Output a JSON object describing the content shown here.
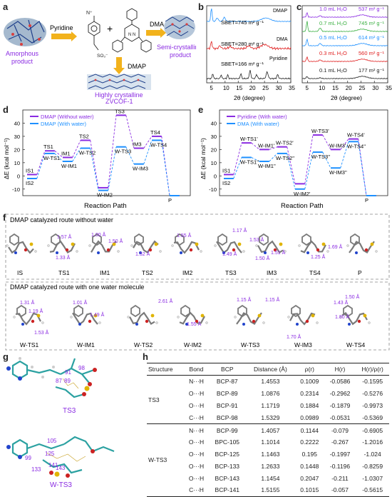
{
  "panels": [
    "a",
    "b",
    "c",
    "d",
    "e",
    "f",
    "g",
    "h"
  ],
  "panel_a": {
    "pyridine": "Pyridine",
    "dma": "DMA",
    "dmap": "DMAP",
    "plus": "+",
    "amorphous": "Amorphous\nproduct",
    "semicryst": "Semi-crystalline\nproduct",
    "highly": "Highly crystalline\nZVCOF-1"
  },
  "panel_b": {
    "xlabel": "2θ (degree)",
    "ticks": [
      "5",
      "10",
      "15",
      "20",
      "25",
      "30",
      "35"
    ],
    "labels": [
      "S$_{BET}$=745 m² g⁻¹",
      "S$_{BET}$=280 m² g⁻¹",
      "S$_{BET}$=166 m² g⁻¹"
    ],
    "sbet": [
      "SBET=745 m² g⁻¹",
      "SBET=280 m² g⁻¹",
      "SBET=166 m² g⁻¹"
    ],
    "reagents": [
      "DMAP",
      "DMA",
      "Pyridine"
    ]
  },
  "panel_c": {
    "xlabel": "2θ (degree)",
    "ticks": [
      "5",
      "10",
      "15",
      "20",
      "25",
      "30",
      "35"
    ],
    "curves": [
      {
        "label": "1.0 mL H₂O",
        "area": "537 m² g⁻¹",
        "color": "#8a2be2"
      },
      {
        "label": "0.7 mL H₂O",
        "area": "745 m² g⁻¹",
        "color": "#3cb043"
      },
      {
        "label": "0.5 mL H₂O",
        "area": "614 m² g⁻¹",
        "color": "#1e90ff"
      },
      {
        "label": "0.3 mL H₂O",
        "area": "560 m² g⁻¹",
        "color": "#e02020"
      },
      {
        "label": "0.1 mL H₂O",
        "area": "177 m² g⁻¹",
        "color": "#222222"
      }
    ]
  },
  "panel_d": {
    "ylabel": "ΔE (kcal mol⁻¹)",
    "xlabel": "Reaction Path",
    "yticks": [
      "40",
      "30",
      "20",
      "10",
      "0",
      "-10"
    ],
    "legend": [
      "DMAP (Without water)",
      "DMAP (With water)"
    ],
    "colors": [
      "#8a2be2",
      "#1e90ff"
    ],
    "states_top": [
      "IS1",
      "TS1",
      "IM1",
      "TS2",
      "IM2",
      "TS3",
      "IM3",
      "TS4",
      "P"
    ],
    "states_bot": [
      "IS2",
      "W-TS1",
      "W-IM1",
      "W-TS2",
      "W-IM2",
      "W-TS3",
      "W-IM3",
      "W-TS4"
    ]
  },
  "panel_e": {
    "ylabel": "ΔE (kcal mol⁻¹)",
    "xlabel": "Reaction Path",
    "yticks": [
      "40",
      "30",
      "20",
      "10",
      "0",
      "-10"
    ],
    "legend": [
      "Pyridine (With water)",
      "DMA (With water)"
    ],
    "colors": [
      "#8a2be2",
      "#1e90ff"
    ],
    "states": [
      "IS1",
      "IS2",
      "W-TS1'",
      "W-TS1''",
      "W-IM1'",
      "W-IM1''",
      "W-TS2'",
      "W-TS2''",
      "W-IM2'",
      "W-IM2''",
      "W-TS3'",
      "W-TS3''",
      "W-IM3'",
      "W-IM3''",
      "W-TS4'",
      "W-TS4''",
      "P"
    ]
  },
  "panel_f": {
    "title1": "DMAP catalyzed route without water",
    "title2": "DMAP catalyzed route with one water molecule",
    "row1": [
      "IS",
      "TS1",
      "IM1",
      "TS2",
      "IM2",
      "TS3",
      "IM3",
      "TS4",
      "P"
    ],
    "row2": [
      "W-TS1",
      "W-IM1",
      "W-TS2",
      "W-IM2",
      "W-TS3",
      "W-IM3",
      "W-TS4"
    ],
    "dist1": [
      "1.57 Å",
      "1.33 Å",
      "1.00 Å",
      "1.50 Å",
      "1.52 Å",
      "1.55 Å",
      "1.17 Å",
      "1.53 Å",
      "1.49 Å",
      "1.50 Å",
      "1.51 Å",
      "1.69 Å",
      "1.25 Å"
    ],
    "dist2": [
      "1.31 Å",
      "1.19 Å",
      "1.53 Å",
      "1.01 Å",
      "1.49 Å",
      "2.61 Å",
      "1.55 Å",
      "1.15 Å",
      "1.15 Å",
      "1.70 Å",
      "1.43 Å",
      "1.50 Å",
      "1.80 Å"
    ]
  },
  "panel_g": {
    "top_label": "TS3",
    "bot_label": "W-TS3",
    "top_nums": [
      "91",
      "98",
      "87",
      "89"
    ],
    "bot_nums": [
      "105",
      "99",
      "125",
      "141",
      "133",
      "143"
    ]
  },
  "panel_h": {
    "headers": [
      "Structure",
      "Bond",
      "BCP",
      "Distance (Å)",
      "ρ(r)",
      "H(r)",
      "H(r)/ρ(r)"
    ],
    "groups": [
      {
        "structure": "TS3",
        "rows": [
          [
            "N···H",
            "BCP-87",
            "1.4553",
            "0.1009",
            "-0.0586",
            "-0.1595"
          ],
          [
            "O···H",
            "BCP-89",
            "1.0876",
            "0.2314",
            "-0.2962",
            "-0.5276"
          ],
          [
            "O···H",
            "BCP-91",
            "1.1719",
            "0.1884",
            "-0.1879",
            "-0.9973"
          ],
          [
            "C···H",
            "BCP-98",
            "1.5329",
            "0.0989",
            "-0.0531",
            "-0.5369"
          ]
        ]
      },
      {
        "structure": "W-TS3",
        "rows": [
          [
            "N···H",
            "BCP-99",
            "1.4057",
            "0.1144",
            "-0.079",
            "-0.6905"
          ],
          [
            "O···H",
            "BPC-105",
            "1.1014",
            "0.2222",
            "-0.267",
            "-1.2016"
          ],
          [
            "O···H",
            "BCP-125",
            "1.1463",
            "0.195",
            "-0.1997",
            "-1.024"
          ],
          [
            "O···H",
            "BCP-133",
            "1.2633",
            "0.1448",
            "-0.1196",
            "-0.8259"
          ],
          [
            "O···H",
            "BCP-143",
            "1.1454",
            "0.2047",
            "-0.211",
            "-1.0307"
          ],
          [
            "C···H",
            "BCP-141",
            "1.5155",
            "0.1015",
            "-0.057",
            "-0.5615"
          ]
        ]
      }
    ]
  },
  "chart_data": [
    {
      "type": "line",
      "title": "",
      "xlabel": "2θ (degree)",
      "ylabel": "",
      "xlim": [
        3,
        35
      ],
      "series": [
        {
          "name": "DMAP",
          "values": []
        },
        {
          "name": "DMA",
          "values": []
        },
        {
          "name": "Pyridine",
          "values": []
        }
      ]
    },
    {
      "type": "line",
      "title": "",
      "xlabel": "2θ (degree)",
      "ylabel": "",
      "xlim": [
        3,
        35
      ],
      "series": [
        {
          "name": "1.0 mL H₂O",
          "values": []
        },
        {
          "name": "0.7 mL H₂O",
          "values": []
        },
        {
          "name": "0.5 mL H₂O",
          "values": []
        },
        {
          "name": "0.3 mL H₂O",
          "values": []
        },
        {
          "name": "0.1 mL H₂O",
          "values": []
        }
      ]
    },
    {
      "type": "line",
      "title": "",
      "xlabel": "Reaction Path",
      "ylabel": "ΔE (kcal mol⁻¹)",
      "ylim": [
        -15,
        50
      ],
      "categories": [
        "IS",
        "TS1",
        "IM1",
        "TS2",
        "IM2",
        "TS3",
        "IM3",
        "TS4",
        "P"
      ],
      "series": [
        {
          "name": "DMAP (Without water)",
          "values": [
            1,
            19,
            14,
            27,
            -9,
            46,
            21,
            30,
            -15
          ]
        },
        {
          "name": "DMAP (With water)",
          "values": [
            -2,
            17,
            11,
            21,
            -11,
            22,
            9,
            27,
            -15
          ]
        }
      ]
    },
    {
      "type": "line",
      "title": "",
      "xlabel": "Reaction Path",
      "ylabel": "ΔE (kcal mol⁻¹)",
      "ylim": [
        -15,
        40
      ],
      "categories": [
        "IS",
        "TS1",
        "IM1",
        "TS2",
        "IM2",
        "TS3",
        "IM3",
        "TS4",
        "P"
      ],
      "series": [
        {
          "name": "Pyridine (With water)",
          "values": [
            1,
            25,
            20,
            22,
            -6,
            31,
            20,
            28,
            -15
          ]
        },
        {
          "name": "DMA (With water)",
          "values": [
            -2,
            14,
            11,
            17,
            -10,
            18,
            6,
            26,
            -15
          ]
        }
      ]
    }
  ]
}
